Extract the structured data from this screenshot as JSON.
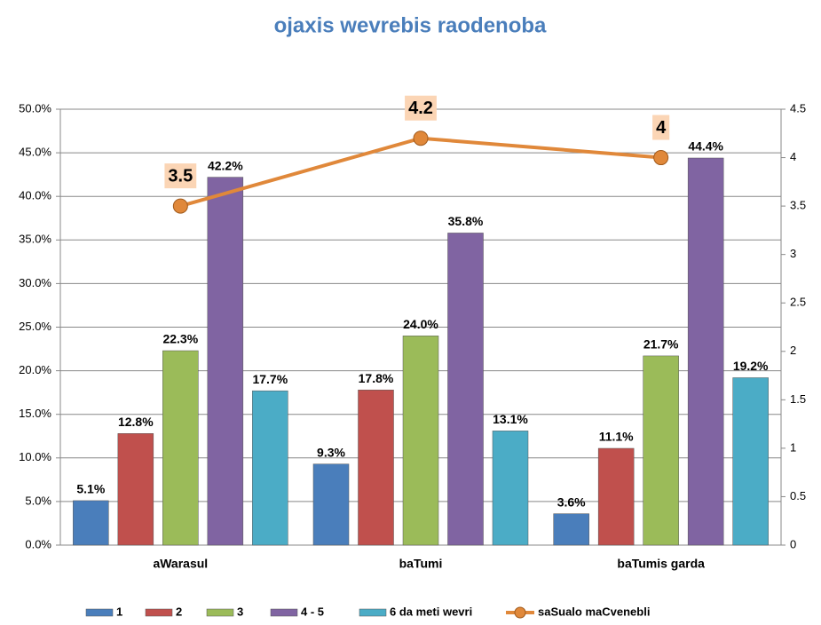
{
  "chart_data": {
    "type": "bar",
    "title": "ojaxis wevrebis raodenoba",
    "categories": [
      "aWarasul",
      "baTumi",
      "baTumis garda"
    ],
    "series": [
      {
        "name": "1",
        "color": "#4a7ebb",
        "values": [
          5.1,
          9.3,
          3.6
        ],
        "value_labels": [
          "5.1%",
          "9.3%",
          "3.6%"
        ]
      },
      {
        "name": "2",
        "color": "#c0504d",
        "values": [
          12.8,
          17.8,
          11.1
        ],
        "value_labels": [
          "12.8%",
          "17.8%",
          "11.1%"
        ]
      },
      {
        "name": "3",
        "color": "#9bbb59",
        "values": [
          22.3,
          24.0,
          21.7
        ],
        "value_labels": [
          "22.3%",
          "24.0%",
          "21.7%"
        ]
      },
      {
        "name": "4 - 5",
        "color": "#8064a2",
        "values": [
          42.2,
          35.8,
          44.4
        ],
        "value_labels": [
          "42.2%",
          "35.8%",
          "44.4%"
        ]
      },
      {
        "name": "6 da meti wevri",
        "color": "#4bacc6",
        "values": [
          17.7,
          13.1,
          19.2
        ],
        "value_labels": [
          "17.7%",
          "13.1%",
          "19.2%"
        ]
      },
      {
        "name": "saSualo maCvenebli",
        "color": "#e0883a",
        "type": "line",
        "axis": "y2",
        "values": [
          3.5,
          4.2,
          4
        ]
      }
    ],
    "ylim": [
      0,
      50
    ],
    "yticks": [
      {
        "value": 0,
        "label": "0.0%"
      },
      {
        "value": 5,
        "label": "5.0%"
      },
      {
        "value": 10,
        "label": "10.0%"
      },
      {
        "value": 15,
        "label": "15.0%"
      },
      {
        "value": 20,
        "label": "20.0%"
      },
      {
        "value": 25,
        "label": "25.0%"
      },
      {
        "value": 30,
        "label": "30.0%"
      },
      {
        "value": 35,
        "label": "35.0%"
      },
      {
        "value": 40,
        "label": "40.0%"
      },
      {
        "value": 45,
        "label": "45.0%"
      },
      {
        "value": 50,
        "label": "50.0%"
      }
    ],
    "y2lim": [
      0,
      4.5
    ],
    "y2ticks": [
      0,
      0.5,
      1,
      1.5,
      2,
      2.5,
      3,
      3.5,
      4,
      4.5
    ],
    "grid": true,
    "legend": "bottom"
  }
}
